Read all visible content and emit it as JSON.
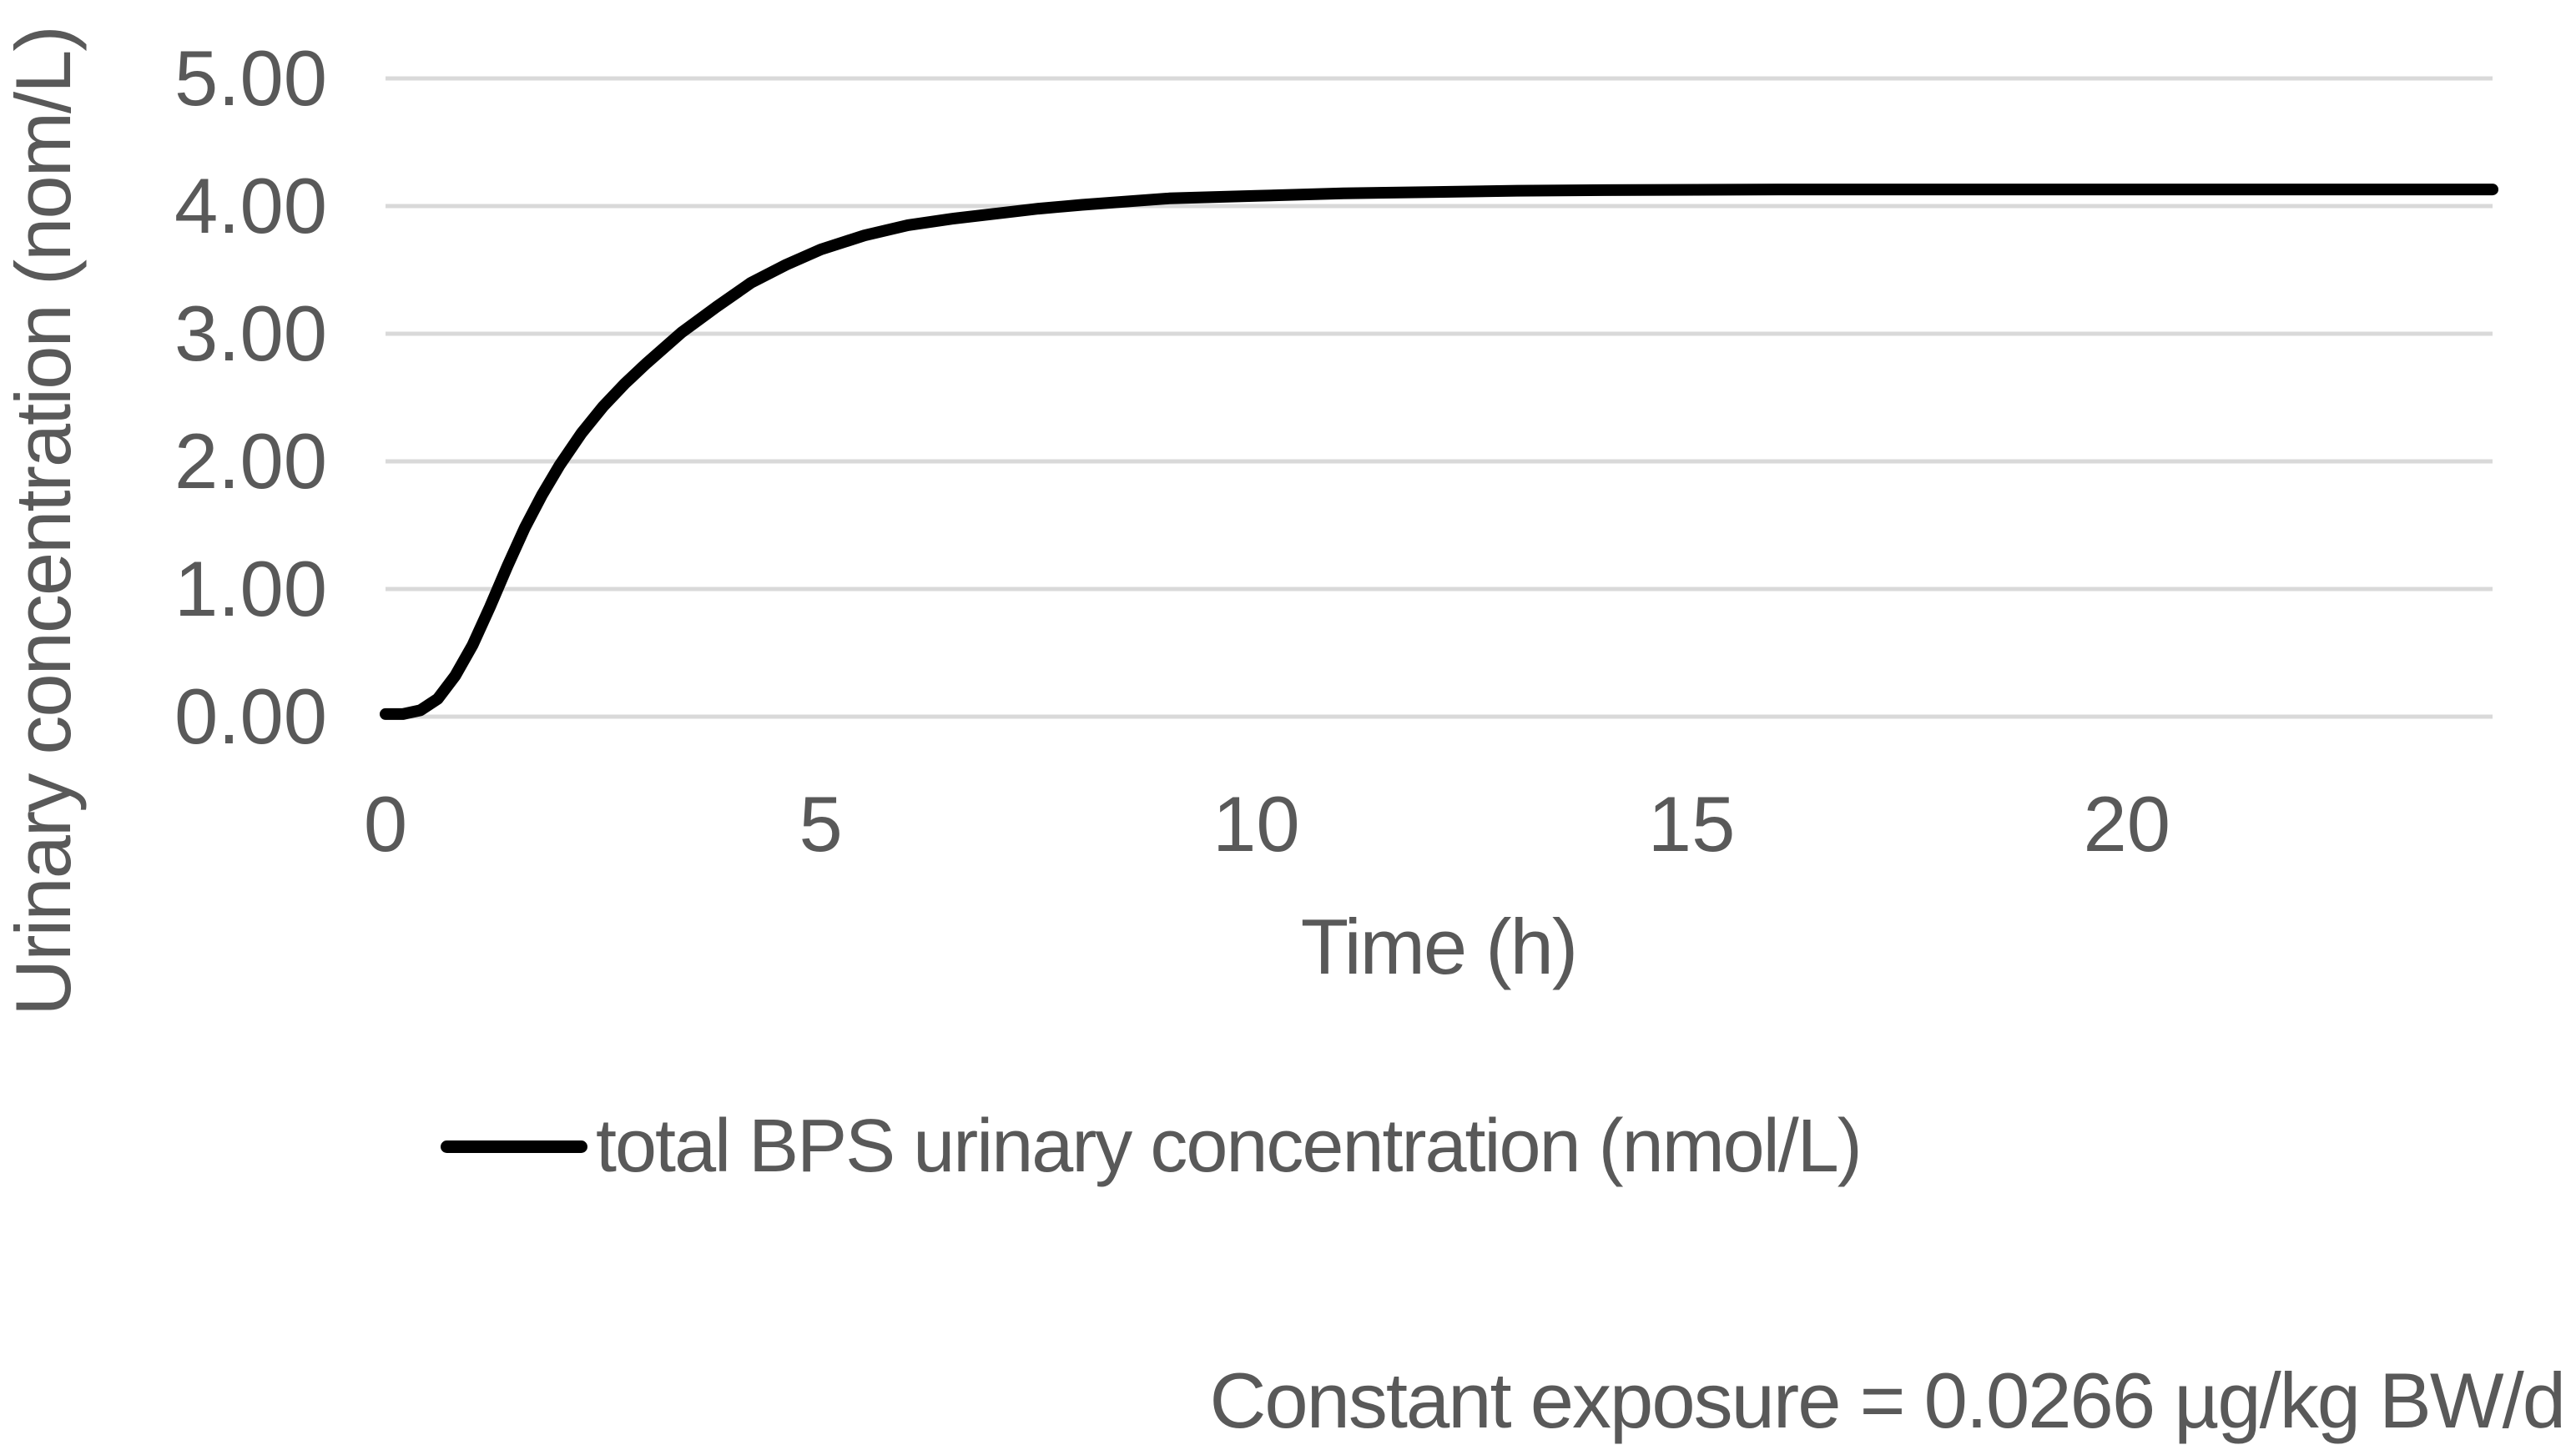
{
  "colors": {
    "background": "#ffffff",
    "text": "#595959",
    "gridline": "#d9d9d9",
    "series_line": "#000000"
  },
  "chart_data": {
    "type": "line",
    "title": "",
    "xlabel": "Time (h)",
    "ylabel": "Urinary concentration (nom/L)",
    "xlim": [
      0,
      24.2
    ],
    "ylim": [
      0,
      5
    ],
    "x_tick_values": [
      0,
      5,
      10,
      15,
      20
    ],
    "x_tick_labels": [
      "0",
      "5",
      "10",
      "15",
      "20"
    ],
    "y_tick_values": [
      0,
      1,
      2,
      3,
      4,
      5
    ],
    "y_tick_labels": [
      "0.00",
      "1.00",
      "2.00",
      "3.00",
      "4.00",
      "5.00"
    ],
    "grid": "horizontal-only",
    "legend_position": "bottom-left",
    "steady_state_value": 4.13,
    "series": [
      {
        "name": "total BPS urinary concentration (nmol/L)",
        "color": "#000000",
        "line_width": 14,
        "x": [
          0,
          0.2,
          0.4,
          0.6,
          0.8,
          1.0,
          1.2,
          1.4,
          1.6,
          1.8,
          2.0,
          2.25,
          2.5,
          2.75,
          3.0,
          3.4,
          3.8,
          4.2,
          4.6,
          5.0,
          5.5,
          6.0,
          6.5,
          7.0,
          7.5,
          8.0,
          9.0,
          10.0,
          11.0,
          12.0,
          13.0,
          14.0,
          16.0,
          18.0,
          20.0,
          22.0,
          24.0,
          24.2
        ],
        "y": [
          0.02,
          0.02,
          0.05,
          0.14,
          0.32,
          0.56,
          0.86,
          1.18,
          1.48,
          1.74,
          1.97,
          2.22,
          2.43,
          2.61,
          2.77,
          3.01,
          3.21,
          3.4,
          3.54,
          3.66,
          3.77,
          3.85,
          3.9,
          3.94,
          3.98,
          4.01,
          4.06,
          4.08,
          4.1,
          4.11,
          4.12,
          4.125,
          4.13,
          4.13,
          4.13,
          4.13,
          4.13,
          4.13
        ]
      }
    ],
    "annotation": "Constant exposure = 0.0266 µg/kg BW/d"
  }
}
